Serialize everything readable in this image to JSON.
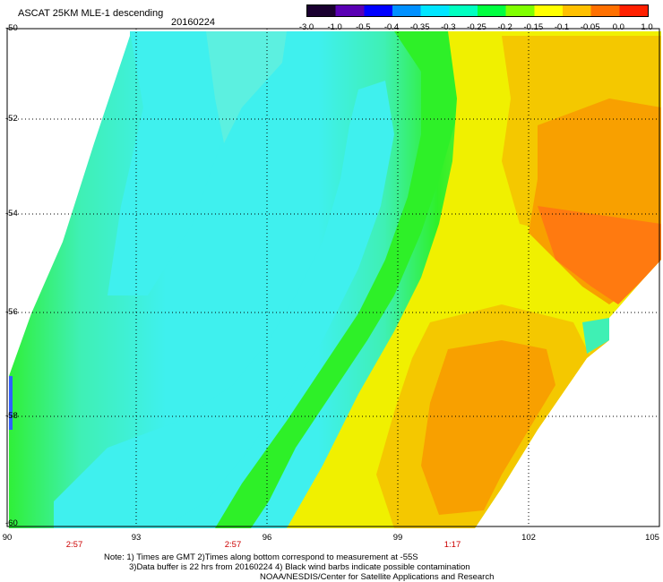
{
  "header": {
    "title": "ASCAT 25KM MLE-1 descending",
    "date": "20160224"
  },
  "colorbar": {
    "labels": [
      "-3.0",
      "-1.0",
      "-0.5",
      "-0.4",
      "-0.35",
      "-0.3",
      "-0.25",
      "-0.2",
      "-0.15",
      "-0.1",
      "-0.05",
      "0.0",
      "1.0"
    ],
    "colors": [
      "#1a0030",
      "#5a00b4",
      "#0000ff",
      "#0090ff",
      "#00e5ff",
      "#00ffc0",
      "#00ff40",
      "#80ff00",
      "#ffff00",
      "#ffc000",
      "#ff7000",
      "#ff2000"
    ]
  },
  "axes": {
    "lat_labels": [
      "-50",
      "-52",
      "-54",
      "-56",
      "-58",
      "-60"
    ],
    "lon_labels": [
      "90",
      "93",
      "96",
      "99",
      "102",
      "105"
    ],
    "time_labels": [
      "2:57",
      "2:57",
      "1:17"
    ]
  },
  "notes": {
    "line1": "Note: 1) Times are GMT 2)Times along bottom correspond to measurement at -55S",
    "line2": "3)Data buffer is 22 hrs from 20160224 4) Black wind barbs indicate possible contamination",
    "line3": "NOAA/NESDIS/Center for Satellite Applications and Research"
  },
  "palette": {
    "cyan": "#3ff0ee",
    "light_cyan": "#5cf0e0",
    "green_cyan": "#3ff0b4",
    "green": "#2ef028",
    "light_green": "#7ef030",
    "yellow": "#f0f000",
    "yellow_orange": "#f4c800",
    "orange": "#f8a000",
    "dark_orange": "#ff7a10"
  }
}
